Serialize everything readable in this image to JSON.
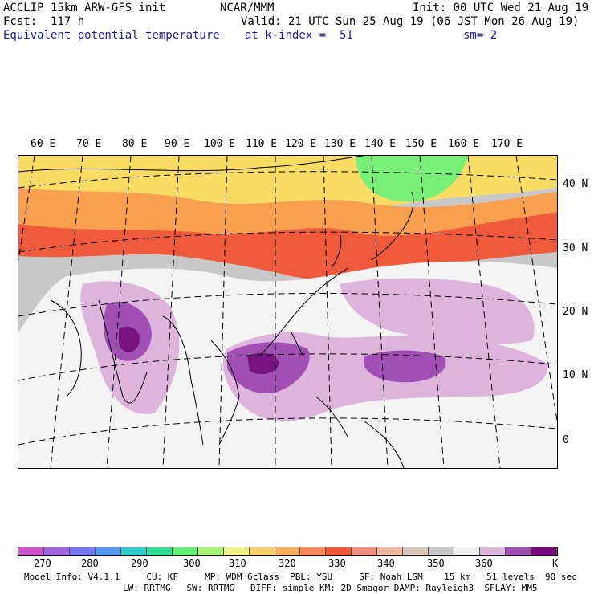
{
  "header": {
    "model": "ACCLIP 15km ARW-GFS init",
    "org": "NCAR/MMM",
    "init": "Init: 00 UTC Wed 21 Aug 19",
    "fcst": "Fcst:  117 h",
    "valid": "Valid: 21 UTC Sun 25 Aug 19 (06 JST Mon 26 Aug 19)",
    "field": "Equivalent potential temperature",
    "level": "at k-index =  51",
    "smooth": "sm= 2"
  },
  "map": {
    "lon_labels": [
      "60 E",
      "70 E",
      "80 E",
      "90 E",
      "100 E",
      "110 E",
      "120 E",
      "130 E",
      "140 E",
      "150 E",
      "160 E",
      "170 E"
    ],
    "lat_labels": [
      "40 N",
      "30 N",
      "20 N",
      "10 N",
      "0"
    ],
    "colors": {
      "cold": "#c8c8c8",
      "warm": "#f8f8f8",
      "purple_light": "#dcb4dc",
      "purple_mid": "#a050b4",
      "purple_dark": "#78147f",
      "red": "#f05a3c",
      "orange": "#f8a050",
      "yellow": "#f8dc64",
      "green": "#78f078"
    }
  },
  "colorbar": {
    "colors": [
      "#cc55cc",
      "#a066dd",
      "#7777ee",
      "#5599ee",
      "#33cccc",
      "#33dd99",
      "#66ee77",
      "#aaf077",
      "#eef08a",
      "#f8d070",
      "#f8b060",
      "#f88a5a",
      "#f05a3c",
      "#f09080",
      "#f0b8a0",
      "#d8c8bc",
      "#c8c8c8",
      "#f0f0f0",
      "#dcb8dc",
      "#a050b0",
      "#780a80"
    ],
    "labels": [
      "270",
      "280",
      "290",
      "300",
      "310",
      "320",
      "330",
      "340",
      "350",
      "360",
      "K"
    ]
  },
  "footer": {
    "line1": "Model Info: V4.1.1     CU: KF     MP: WDM 6class  PBL: YSU     SF: Noah LSM    15 km   51 levels  90 sec",
    "line2": "LW: RRTMG   SW: RRTMG   DIFF: simple KM: 2D Smagor DAMP: Rayleigh3  SFLAY: MM5"
  }
}
